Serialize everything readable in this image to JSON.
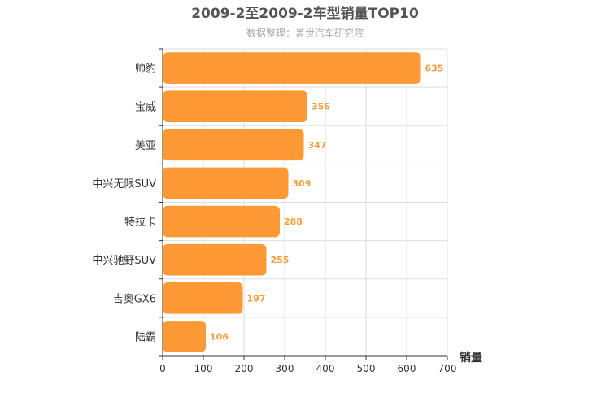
{
  "chart_data": {
    "type": "bar",
    "orientation": "horizontal",
    "title": "2009-2至2009-2车型销量TOP10",
    "subtitle": "数据整理：盖世汽车研究院",
    "categories": [
      "帅豹",
      "宝威",
      "美亚",
      "中兴无限SUV",
      "特拉卡",
      "中兴驰野SUV",
      "吉奥GX6",
      "陆霸"
    ],
    "values": [
      635,
      356,
      347,
      309,
      288,
      255,
      197,
      106
    ],
    "xlabel": "销量",
    "ylabel": "",
    "xlim": [
      0,
      700
    ],
    "xticks": [
      0,
      100,
      200,
      300,
      400,
      500,
      600,
      700
    ],
    "grid": true,
    "legend": "none",
    "bar_color": "#ff9933",
    "label_color": "#f0a040"
  }
}
